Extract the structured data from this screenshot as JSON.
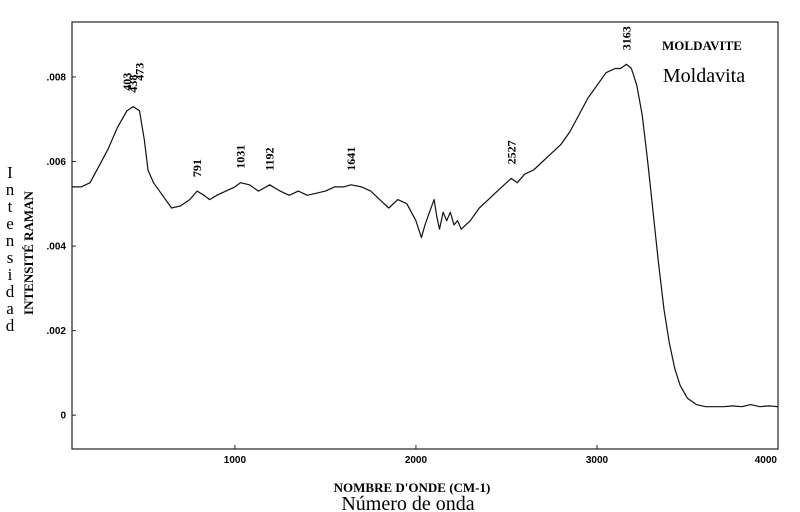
{
  "chart_data": {
    "type": "line",
    "title": "MOLDAVITE",
    "subtitle": "Moldavita",
    "xlabel": "NOMBRE D'ONDE (CM-1)",
    "xlabel_alt": "Número de onda",
    "ylabel": "INTENSITÉ RAMAN",
    "ylabel_alt": "Intensidad",
    "xlim": [
      100,
      4000
    ],
    "ylim": [
      -0.0008,
      0.0093
    ],
    "x_ticks": [
      1000,
      2000,
      3000,
      4000
    ],
    "x_tick_labels": [
      "1000",
      "2000",
      "3000",
      "4000"
    ],
    "y_ticks": [
      0,
      0.002,
      0.004,
      0.006,
      0.008
    ],
    "y_tick_labels": [
      "0",
      ".002",
      ".004",
      ".006",
      ".008"
    ],
    "grid": false,
    "line_color": "#111111",
    "series": [
      {
        "x": [
          100,
          150,
          200,
          250,
          300,
          350,
          403,
          438,
          473,
          500,
          520,
          550,
          600,
          650,
          700,
          750,
          791,
          830,
          860,
          900,
          950,
          1000,
          1031,
          1080,
          1130,
          1192,
          1250,
          1300,
          1350,
          1400,
          1450,
          1500,
          1550,
          1600,
          1641,
          1700,
          1750,
          1800,
          1850,
          1900,
          1950,
          2000,
          2030,
          2050,
          2075,
          2100,
          2115,
          2130,
          2150,
          2170,
          2190,
          2210,
          2230,
          2250,
          2300,
          2350,
          2400,
          2450,
          2500,
          2527,
          2560,
          2600,
          2650,
          2700,
          2750,
          2800,
          2850,
          2900,
          2950,
          3000,
          3050,
          3100,
          3130,
          3163,
          3190,
          3220,
          3250,
          3280,
          3310,
          3340,
          3370,
          3400,
          3430,
          3460,
          3500,
          3550,
          3600,
          3650,
          3700,
          3750,
          3800,
          3850,
          3900,
          3950,
          4000
        ],
        "y": [
          0.0054,
          0.0054,
          0.0055,
          0.0059,
          0.0063,
          0.0068,
          0.0072,
          0.0073,
          0.0072,
          0.0065,
          0.0058,
          0.0055,
          0.0052,
          0.0049,
          0.00495,
          0.0051,
          0.0053,
          0.0052,
          0.0051,
          0.0052,
          0.0053,
          0.0054,
          0.0055,
          0.00545,
          0.0053,
          0.00545,
          0.0053,
          0.0052,
          0.0053,
          0.0052,
          0.00525,
          0.0053,
          0.0054,
          0.0054,
          0.00545,
          0.0054,
          0.0053,
          0.0051,
          0.0049,
          0.0051,
          0.005,
          0.0046,
          0.0042,
          0.0045,
          0.0048,
          0.0051,
          0.0047,
          0.0044,
          0.0048,
          0.0046,
          0.0048,
          0.0045,
          0.0046,
          0.0044,
          0.0046,
          0.0049,
          0.0051,
          0.0053,
          0.0055,
          0.0056,
          0.0055,
          0.0057,
          0.0058,
          0.006,
          0.0062,
          0.0064,
          0.0067,
          0.0071,
          0.0075,
          0.0078,
          0.0081,
          0.0082,
          0.0082,
          0.0083,
          0.0082,
          0.0078,
          0.0071,
          0.006,
          0.0048,
          0.0036,
          0.0025,
          0.0017,
          0.0011,
          0.0007,
          0.0004,
          0.00025,
          0.0002,
          0.0002,
          0.0002,
          0.00022,
          0.0002,
          0.00025,
          0.0002,
          0.00022,
          0.0002
        ]
      }
    ],
    "peaks": [
      {
        "x": 403,
        "label": "403"
      },
      {
        "x": 438,
        "label": "438"
      },
      {
        "x": 473,
        "label": "473"
      },
      {
        "x": 791,
        "label": "791"
      },
      {
        "x": 1031,
        "label": "1031"
      },
      {
        "x": 1192,
        "label": "1192"
      },
      {
        "x": 1641,
        "label": "1641"
      },
      {
        "x": 2527,
        "label": "2527"
      },
      {
        "x": 3163,
        "label": "3163"
      }
    ]
  }
}
